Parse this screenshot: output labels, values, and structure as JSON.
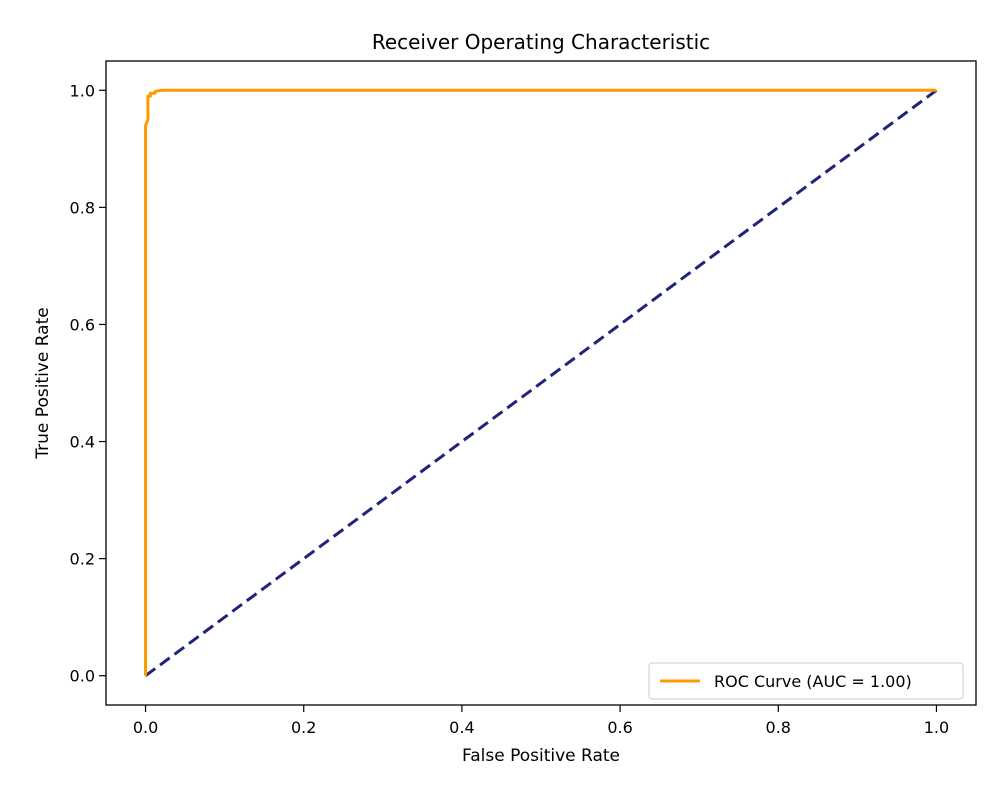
{
  "chart_data": {
    "type": "line",
    "title": "Receiver Operating Characteristic",
    "xlabel": "False Positive Rate",
    "ylabel": "True Positive Rate",
    "xlim": [
      -0.05,
      1.05
    ],
    "ylim": [
      -0.05,
      1.05
    ],
    "xticks": [
      0.0,
      0.2,
      0.4,
      0.6,
      0.8,
      1.0
    ],
    "xtick_labels": [
      "0.0",
      "0.2",
      "0.4",
      "0.6",
      "0.8",
      "1.0"
    ],
    "yticks": [
      0.0,
      0.2,
      0.4,
      0.6,
      0.8,
      1.0
    ],
    "ytick_labels": [
      "0.0",
      "0.2",
      "0.4",
      "0.6",
      "0.8",
      "1.0"
    ],
    "grid": false,
    "legend_position": "lower-right",
    "series": [
      {
        "name": "ROC Curve (AUC = 1.00)",
        "color": "#ff9900",
        "style": "solid",
        "in_legend": true,
        "x": [
          0.0,
          0.0,
          0.003,
          0.003,
          0.006,
          0.006,
          0.012,
          0.012,
          0.02,
          1.0
        ],
        "y": [
          0.0,
          0.94,
          0.95,
          0.99,
          0.99,
          0.995,
          0.995,
          0.998,
          1.0,
          1.0
        ]
      },
      {
        "name": "",
        "color": "#1f237a",
        "style": "dashed",
        "in_legend": false,
        "x": [
          0.0,
          1.0
        ],
        "y": [
          0.0,
          1.0
        ]
      }
    ]
  }
}
